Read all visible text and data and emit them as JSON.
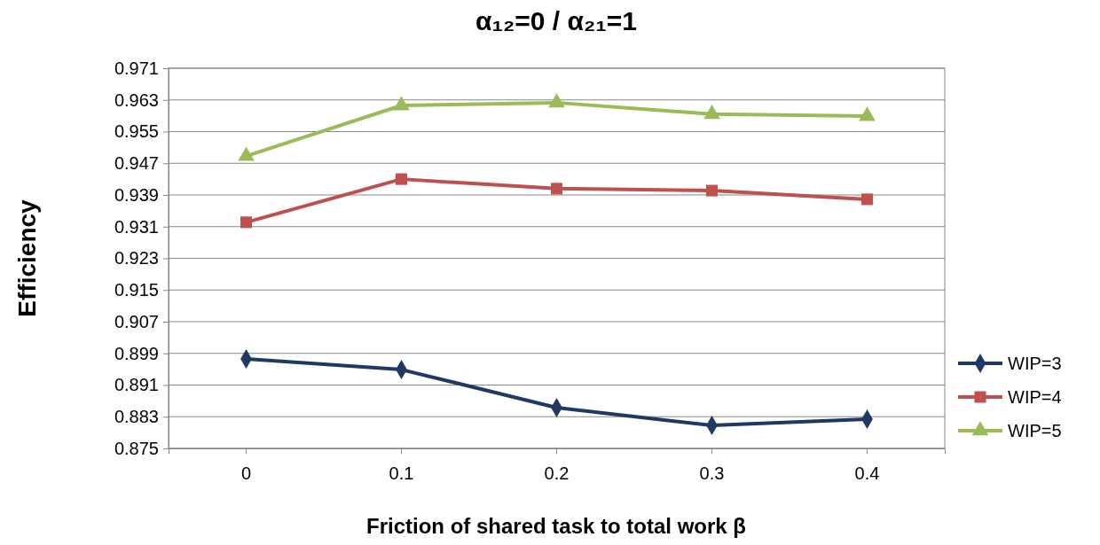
{
  "chart_data": {
    "type": "line",
    "title": "α₁₂=0 / α₂₁=1",
    "xlabel": "Friction of shared task to total work β",
    "ylabel": "Efficiency",
    "categories": [
      "0",
      "0.1",
      "0.2",
      "0.3",
      "0.4"
    ],
    "series": [
      {
        "name": "WIP=3",
        "color": "#1f3864",
        "marker": "diamond",
        "values": [
          0.8976,
          0.8949,
          0.8853,
          0.8808,
          0.8824
        ]
      },
      {
        "name": "WIP=4",
        "color": "#c0504d",
        "marker": "square",
        "values": [
          0.9321,
          0.943,
          0.9406,
          0.9401,
          0.9379
        ]
      },
      {
        "name": "WIP=5",
        "color": "#9bbb59",
        "marker": "triangle",
        "values": [
          0.9488,
          0.9616,
          0.9623,
          0.9594,
          0.9589
        ]
      }
    ],
    "ylim": [
      0.875,
      0.971
    ],
    "yticks": [
      {
        "value": 0.875,
        "label": "0.875"
      },
      {
        "value": 0.883,
        "label": "0.883"
      },
      {
        "value": 0.891,
        "label": "0.891"
      },
      {
        "value": 0.899,
        "label": "0.899"
      },
      {
        "value": 0.907,
        "label": "0.907"
      },
      {
        "value": 0.915,
        "label": "0.915"
      },
      {
        "value": 0.923,
        "label": "0.923"
      },
      {
        "value": 0.931,
        "label": "0.931"
      },
      {
        "value": 0.939,
        "label": "0.939"
      },
      {
        "value": 0.947,
        "label": "0.947"
      },
      {
        "value": 0.955,
        "label": "0.955"
      },
      {
        "value": 0.963,
        "label": "0.963"
      },
      {
        "value": 0.971,
        "label": "0.971"
      }
    ],
    "grid": "y",
    "legend": "right",
    "line_style": "solid"
  }
}
